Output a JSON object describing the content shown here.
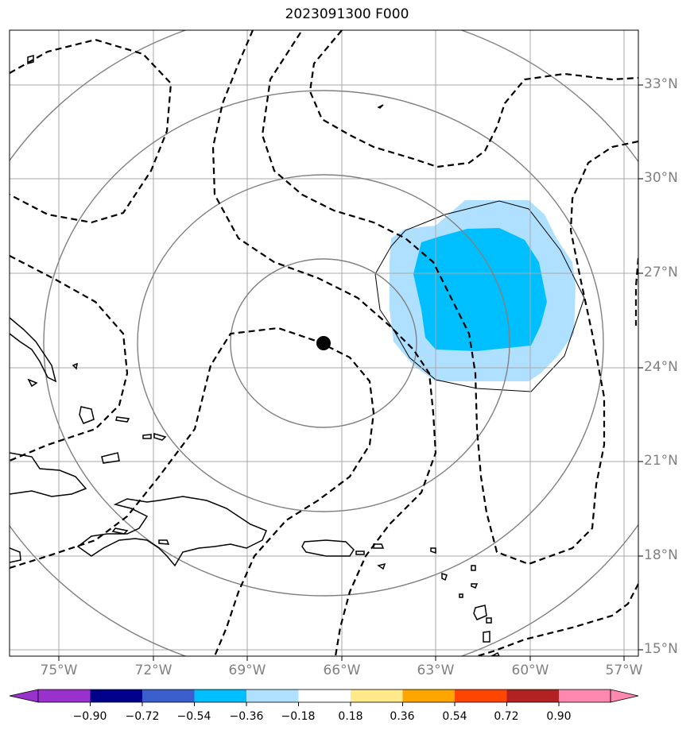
{
  "title": "2023091300 F000",
  "lat_labels": [
    "33°N",
    "30°N",
    "27°N",
    "24°N",
    "21°N",
    "18°N",
    "15°N"
  ],
  "lon_labels": [
    "75°W",
    "72°W",
    "69°W",
    "66°W",
    "63°W",
    "60°W",
    "57°W"
  ],
  "colorbar": {
    "labels": [
      "−0.90",
      "−0.72",
      "−0.54",
      "−0.36",
      "−0.18",
      "0.18",
      "0.36",
      "0.54",
      "0.72",
      "0.90"
    ],
    "colors": [
      "#9932cc",
      "#00008b",
      "#3a5fcd",
      "#00bfff",
      "#b0e0ff",
      "#ffffff",
      "#ffe98a",
      "#ffa500",
      "#ff4500",
      "#b22222",
      "#ff88b0"
    ]
  },
  "colors": {
    "grid": "#a9a9a9",
    "range_ring": "#808080",
    "contour": "#000000",
    "shade_light": "#b0e0ff",
    "shade_dark": "#00bfff"
  },
  "map": {
    "storm_center": {
      "lon": "66.6°W",
      "lat": "24.8°N"
    }
  }
}
